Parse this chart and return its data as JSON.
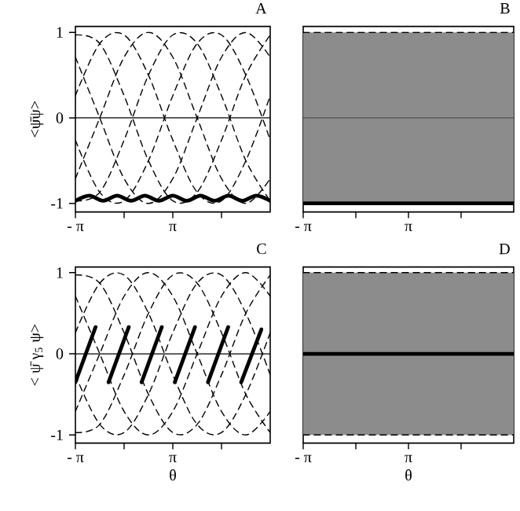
{
  "chart_data": [
    {
      "type": "line",
      "title": "A",
      "ylabel": "<ψ̄ψ>",
      "xlim": [
        -3.14,
        9.42
      ],
      "ylim": [
        -1.1,
        1.07
      ],
      "xticks": [
        {
          "value": -3.14,
          "label": "- π"
        },
        {
          "value": 0,
          "label": null
        },
        {
          "value": 3.14,
          "label": "π"
        },
        {
          "value": 6.28,
          "label": null
        }
      ],
      "yticks": [
        -1,
        0,
        1
      ],
      "ref_lines": [
        {
          "axis": "y",
          "value": 0,
          "color": "#000000"
        }
      ],
      "series": [
        {
          "color": "#000000",
          "line_style": "dashed",
          "x": [
            -3.14,
            -1.57,
            0,
            1.57,
            3.14,
            4.71,
            6.28,
            7.85,
            9.42
          ],
          "values": [
            0.26,
            0.87,
            0.97,
            0.5,
            -0.26,
            -0.87,
            -0.97,
            -0.5,
            0.26
          ]
        },
        {
          "color": "#000000",
          "line_style": "dashed",
          "x": [
            -3.14,
            -1.57,
            0,
            1.57,
            3.14,
            4.71,
            6.28,
            7.85,
            9.42
          ],
          "values": [
            0.97,
            0.87,
            0.26,
            -0.5,
            -0.97,
            -0.87,
            -0.26,
            0.5,
            0.97
          ]
        },
        {
          "color": "#000000",
          "line_style": "dashed",
          "x": [
            -3.14,
            -1.57,
            0,
            1.57,
            3.14,
            4.71,
            6.28,
            7.85,
            9.42
          ],
          "values": [
            0.71,
            0,
            -0.71,
            -1,
            -0.71,
            0,
            0.71,
            1,
            0.71
          ]
        },
        {
          "color": "#000000",
          "line_style": "dashed",
          "x": [
            -3.14,
            -1.57,
            0,
            1.57,
            3.14,
            4.71,
            6.28,
            7.85,
            9.42
          ],
          "values": [
            -0.26,
            -0.87,
            -0.97,
            -0.5,
            0.26,
            0.87,
            0.97,
            0.5,
            -0.26
          ]
        },
        {
          "color": "#000000",
          "line_style": "dashed",
          "x": [
            -3.14,
            -1.57,
            0,
            1.57,
            3.14,
            4.71,
            6.28,
            7.85,
            9.42
          ],
          "values": [
            -0.97,
            -0.87,
            -0.26,
            0.5,
            0.97,
            0.87,
            0.26,
            -0.5,
            -0.97
          ]
        },
        {
          "color": "#000000",
          "line_style": "dashed",
          "x": [
            -3.14,
            -1.57,
            0,
            1.57,
            3.14,
            4.71,
            6.28,
            7.85,
            9.42
          ],
          "values": [
            -0.71,
            0,
            0.71,
            1,
            0.71,
            0,
            -0.71,
            -1,
            -0.71
          ]
        },
        {
          "color": "#000000",
          "line_style": "solid",
          "x": [
            -3.14,
            -2.24,
            -1.35,
            -0.45,
            0.45,
            1.34,
            2.24,
            3.14,
            4.04,
            4.93,
            5.83,
            6.73,
            7.62,
            8.52,
            9.42
          ],
          "values": [
            -0.97,
            -0.91,
            -0.97,
            -0.91,
            -0.97,
            -0.91,
            -0.97,
            -0.91,
            -0.97,
            -0.91,
            -0.97,
            -0.91,
            -0.97,
            -0.91,
            -0.97
          ]
        }
      ]
    },
    {
      "type": "line",
      "title": "B",
      "tick_labels": "x",
      "xlim": [
        -3.14,
        9.42
      ],
      "ylim": [
        -1.1,
        1.07
      ],
      "xticks": [
        {
          "value": -3.14,
          "label": "- π"
        },
        {
          "value": 0,
          "label": null
        },
        {
          "value": 3.14,
          "label": "π"
        },
        {
          "value": 6.28,
          "label": null
        }
      ],
      "bands": [
        {
          "axis": "y",
          "from": -1,
          "to": 1,
          "color": "#8c8c8c"
        }
      ],
      "ref_lines": [
        {
          "axis": "y",
          "value": 0,
          "color": "#555555"
        }
      ],
      "series": [
        {
          "color": "#000000",
          "line_style": "dashed",
          "x": [
            -3.14,
            9.42
          ],
          "values": [
            1,
            1
          ]
        },
        {
          "color": "#000000",
          "line_style": "solid",
          "x": [
            -3.14,
            9.42
          ],
          "values": [
            -1,
            -1
          ]
        }
      ]
    },
    {
      "type": "line",
      "title": "C",
      "xlabel": "θ",
      "ylabel": "< ψ̄ γ$_{5}$ ψ>",
      "xlim": [
        -3.14,
        9.42
      ],
      "ylim": [
        -1.1,
        1.07
      ],
      "xticks": [
        {
          "value": -3.14,
          "label": "- π"
        },
        {
          "value": 0,
          "label": null
        },
        {
          "value": 3.14,
          "label": "π"
        },
        {
          "value": 6.28,
          "label": null
        }
      ],
      "yticks": [
        -1,
        0,
        1
      ],
      "ref_lines": [
        {
          "axis": "y",
          "value": 0,
          "color": "#000000"
        }
      ],
      "series": [
        {
          "color": "#000000",
          "line_style": "dashed",
          "x": [
            -3.14,
            -1.57,
            0,
            1.57,
            3.14,
            4.71,
            6.28,
            7.85,
            9.42
          ],
          "values": [
            0.26,
            0.87,
            0.97,
            0.5,
            -0.26,
            -0.87,
            -0.97,
            -0.5,
            0.26
          ]
        },
        {
          "color": "#000000",
          "line_style": "dashed",
          "x": [
            -3.14,
            -1.57,
            0,
            1.57,
            3.14,
            4.71,
            6.28,
            7.85,
            9.42
          ],
          "values": [
            0.97,
            0.87,
            0.26,
            -0.5,
            -0.97,
            -0.87,
            -0.26,
            0.5,
            0.97
          ]
        },
        {
          "color": "#000000",
          "line_style": "dashed",
          "x": [
            -3.14,
            -1.57,
            0,
            1.57,
            3.14,
            4.71,
            6.28,
            7.85,
            9.42
          ],
          "values": [
            0.71,
            0,
            -0.71,
            -1,
            -0.71,
            0,
            0.71,
            1,
            0.71
          ]
        },
        {
          "color": "#000000",
          "line_style": "dashed",
          "x": [
            -3.14,
            -1.57,
            0,
            1.57,
            3.14,
            4.71,
            6.28,
            7.85,
            9.42
          ],
          "values": [
            -0.26,
            -0.87,
            -0.97,
            -0.5,
            0.26,
            0.87,
            0.97,
            0.5,
            -0.26
          ]
        },
        {
          "color": "#000000",
          "line_style": "dashed",
          "x": [
            -3.14,
            -1.57,
            0,
            1.57,
            3.14,
            4.71,
            6.28,
            7.85,
            9.42
          ],
          "values": [
            -0.97,
            -0.87,
            -0.26,
            0.5,
            0.97,
            0.87,
            0.26,
            -0.5,
            -0.97
          ]
        },
        {
          "color": "#000000",
          "line_style": "dashed",
          "x": [
            -3.14,
            -1.57,
            0,
            1.57,
            3.14,
            4.71,
            6.28,
            7.85,
            9.42
          ],
          "values": [
            -0.71,
            0,
            0.71,
            1,
            0.71,
            0,
            -0.71,
            -1,
            -0.71
          ]
        },
        {
          "color": "#000000",
          "line_style": "solid",
          "x": [
            -3.14,
            -1.84,
            -1.6,
            -1.0,
            0.3,
            0.5,
            1.13,
            2.43,
            2.7,
            3.27,
            4.57,
            4.9,
            5.41,
            6.71,
            7.0,
            7.55,
            8.85
          ],
          "values": [
            -0.35,
            0.33,
            null,
            -0.35,
            0.33,
            null,
            -0.35,
            0.33,
            null,
            -0.35,
            0.33,
            null,
            -0.35,
            0.33,
            null,
            -0.35,
            0.3
          ]
        }
      ]
    },
    {
      "type": "line",
      "title": "D",
      "xlabel": "θ",
      "tick_labels": "x",
      "xlim": [
        -3.14,
        9.42
      ],
      "ylim": [
        -1.1,
        1.07
      ],
      "xticks": [
        {
          "value": -3.14,
          "label": "- π"
        },
        {
          "value": 0,
          "label": null
        },
        {
          "value": 3.14,
          "label": "π"
        },
        {
          "value": 6.28,
          "label": null
        }
      ],
      "bands": [
        {
          "axis": "y",
          "from": -1,
          "to": 1,
          "color": "#8c8c8c"
        }
      ],
      "series": [
        {
          "color": "#000000",
          "line_style": "dashed",
          "x": [
            -3.14,
            9.42
          ],
          "values": [
            1,
            1
          ]
        },
        {
          "color": "#000000",
          "line_style": "dashed",
          "x": [
            -3.14,
            9.42
          ],
          "values": [
            -1,
            -1
          ]
        },
        {
          "color": "#000000",
          "line_style": "solid",
          "x": [
            -3.14,
            9.42
          ],
          "values": [
            0,
            0
          ]
        }
      ]
    }
  ]
}
